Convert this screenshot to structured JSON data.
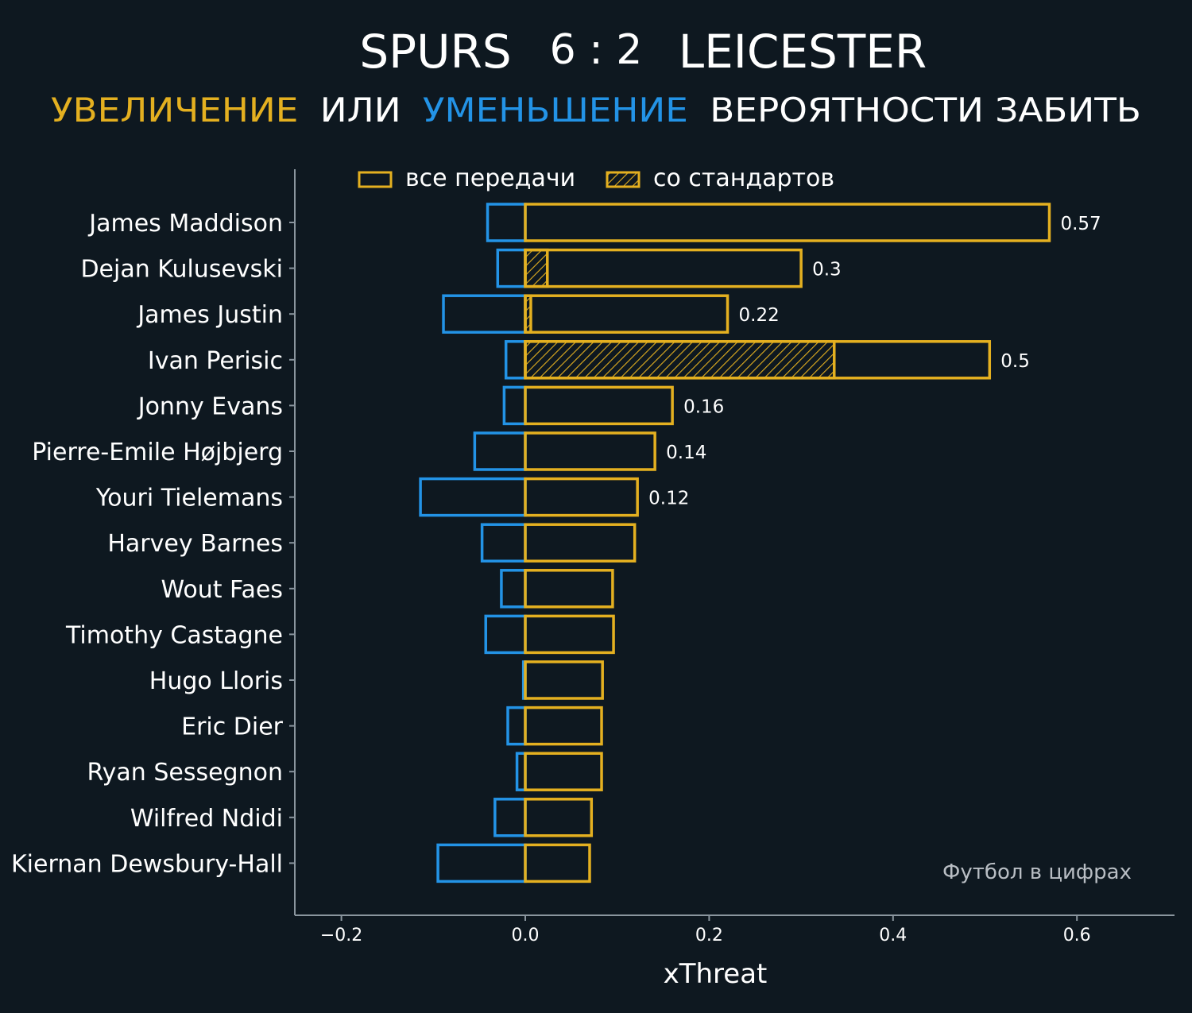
{
  "header": {
    "home": "SPURS",
    "score": "6 : 2",
    "away": "LEICESTER",
    "subtitle_increase": "УВЕЛИЧЕНИЕ",
    "subtitle_or": "ИЛИ",
    "subtitle_decrease": "УМЕНЬШЕНИЕ",
    "subtitle_rest": "ВЕРОЯТНОСТИ ЗАБИТЬ"
  },
  "colors": {
    "background": "#0e1820",
    "positive": "#e4b020",
    "negative": "#2393e6",
    "axis": "#8a959e",
    "text": "#ffffff"
  },
  "source": "Футбол в цифрах",
  "chart_data": {
    "type": "bar",
    "orientation": "horizontal",
    "xlabel": "xThreat",
    "xlim": [
      -0.25,
      0.7
    ],
    "xticks": [
      -0.2,
      0.0,
      0.2,
      0.4,
      0.6
    ],
    "xtick_labels": [
      "−0.2",
      "0.0",
      "0.2",
      "0.4",
      "0.6"
    ],
    "legend": {
      "placement": "top",
      "entries": [
        {
          "label": "все передачи",
          "style": "outline"
        },
        {
          "label": "со стандартов",
          "style": "hatched"
        }
      ]
    },
    "categories": [
      "James Maddison",
      "Dejan Kulusevski",
      "James Justin",
      "Ivan Perisic",
      "Jonny Evans",
      "Pierre-Emile Højbjerg",
      "Youri Tielemans",
      "Harvey Barnes",
      "Wout Faes",
      "Timothy Castagne",
      "Hugo Lloris",
      "Eric Dier",
      "Ryan Sessegnon",
      "Wilfred Ndidi",
      "Kiernan Dewsbury-Hall"
    ],
    "series": [
      {
        "key": "positive",
        "values": [
          0.57,
          0.3,
          0.22,
          0.505,
          0.16,
          0.141,
          0.122,
          0.119,
          0.095,
          0.096,
          0.084,
          0.083,
          0.083,
          0.072,
          0.07
        ]
      },
      {
        "key": "negative",
        "values": [
          -0.041,
          -0.03,
          -0.089,
          -0.021,
          -0.023,
          -0.055,
          -0.114,
          -0.047,
          -0.026,
          -0.043,
          -0.002,
          -0.019,
          -0.009,
          -0.033,
          -0.095
        ]
      },
      {
        "key": "set_pieces",
        "values": [
          0,
          0.024,
          0.006,
          0.336,
          0,
          0,
          0,
          0,
          0,
          0,
          0,
          0,
          0,
          0,
          0
        ]
      }
    ],
    "data_labels": [
      "0.57",
      "0.3",
      "0.22",
      "0.5",
      "0.16",
      "0.14",
      "0.12",
      "",
      "",
      "",
      "",
      "",
      "",
      "",
      ""
    ]
  }
}
